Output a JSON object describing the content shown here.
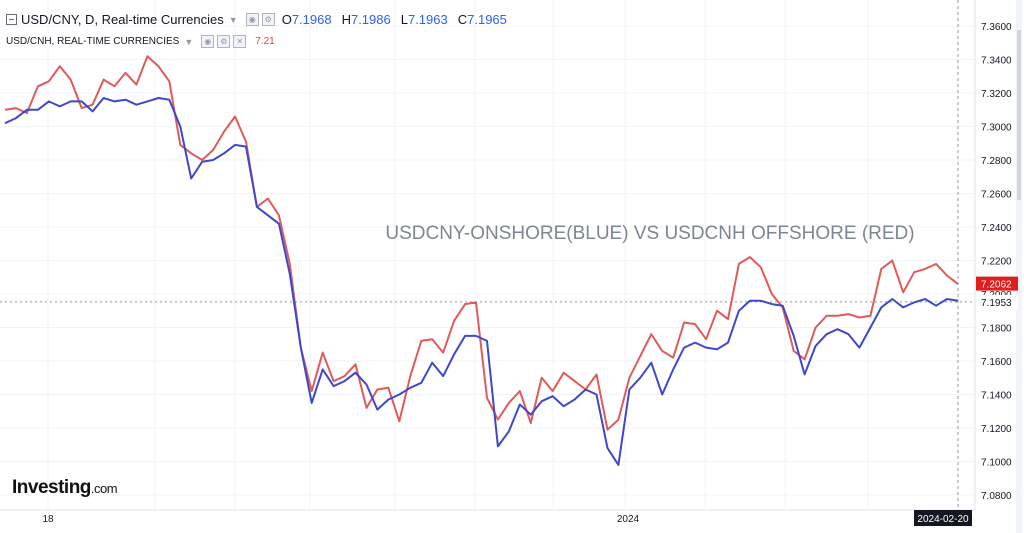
{
  "legend": {
    "main_title": "USD/CNY, D, Real-time Currencies",
    "open_label": "O",
    "open_value": "7.1968",
    "high_label": "H",
    "high_value": "7.1986",
    "low_label": "L",
    "low_value": "7.1963",
    "close_label": "C",
    "close_value": "7.1965",
    "sub_title": "USD/CNH, REAL-TIME CURRENCIES",
    "sub_value": "7.21"
  },
  "brand": {
    "name": "Investing",
    "suffix": ".com"
  },
  "colors": {
    "blue_series": "#3f48cc",
    "red_series": "#e05a5a",
    "price_tag_red": "#e01e1e"
  },
  "chart_data": {
    "type": "line",
    "title": "USDCNY-ONSHORE(BLUE) VS USDCNH OFFSHORE (RED)",
    "ylim": [
      7.07,
      7.37
    ],
    "y_ticks": [
      "7.3600",
      "7.3400",
      "7.3200",
      "7.3000",
      "7.2800",
      "7.2600",
      "7.2400",
      "7.2200",
      "7.2000",
      "7.1800",
      "7.1600",
      "7.1400",
      "7.1200",
      "7.1000",
      "7.0800"
    ],
    "x_tick_labels": [
      "18",
      "2024",
      "2024-02-20"
    ],
    "grid": true,
    "price_labels": [
      "7.2062",
      "7.1953"
    ],
    "series": [
      {
        "color": "blue",
        "values": [
          7.302,
          7.305,
          7.31,
          7.31,
          7.315,
          7.312,
          7.315,
          7.315,
          7.309,
          7.317,
          7.315,
          7.316,
          7.313,
          7.315,
          7.317,
          7.316,
          7.3,
          7.269,
          7.279,
          7.28,
          7.284,
          7.289,
          7.288,
          7.252,
          7.247,
          7.242,
          7.212,
          7.168,
          7.135,
          7.155,
          7.145,
          7.148,
          7.153,
          7.146,
          7.131,
          7.137,
          7.14,
          7.144,
          7.147,
          7.159,
          7.151,
          7.164,
          7.175,
          7.175,
          7.172,
          7.109,
          7.118,
          7.134,
          7.128,
          7.136,
          7.139,
          7.133,
          7.137,
          7.143,
          7.14,
          7.108,
          7.098,
          7.143,
          7.15,
          7.159,
          7.14,
          7.155,
          7.168,
          7.171,
          7.168,
          7.167,
          7.171,
          7.19,
          7.196,
          7.196,
          7.194,
          7.193,
          7.175,
          7.152,
          7.169,
          7.176,
          7.179,
          7.176,
          7.168,
          7.18,
          7.192,
          7.197,
          7.192,
          7.195,
          7.197,
          7.193,
          7.197,
          7.196
        ]
      },
      {
        "color": "red",
        "values": [
          7.31,
          7.311,
          7.308,
          7.324,
          7.327,
          7.336,
          7.328,
          7.311,
          7.313,
          7.328,
          7.324,
          7.332,
          7.325,
          7.342,
          7.336,
          7.327,
          7.289,
          7.284,
          7.28,
          7.286,
          7.297,
          7.306,
          7.291,
          7.252,
          7.257,
          7.247,
          7.218,
          7.168,
          7.142,
          7.165,
          7.148,
          7.151,
          7.158,
          7.132,
          7.143,
          7.144,
          7.124,
          7.151,
          7.172,
          7.173,
          7.165,
          7.184,
          7.194,
          7.195,
          7.138,
          7.125,
          7.135,
          7.142,
          7.123,
          7.15,
          7.142,
          7.153,
          7.148,
          7.143,
          7.152,
          7.119,
          7.125,
          7.15,
          7.163,
          7.176,
          7.166,
          7.162,
          7.183,
          7.182,
          7.173,
          7.19,
          7.185,
          7.218,
          7.222,
          7.216,
          7.2,
          7.192,
          7.166,
          7.161,
          7.18,
          7.187,
          7.187,
          7.188,
          7.186,
          7.187,
          7.215,
          7.22,
          7.201,
          7.213,
          7.215,
          7.218,
          7.211,
          7.206
        ]
      }
    ]
  }
}
